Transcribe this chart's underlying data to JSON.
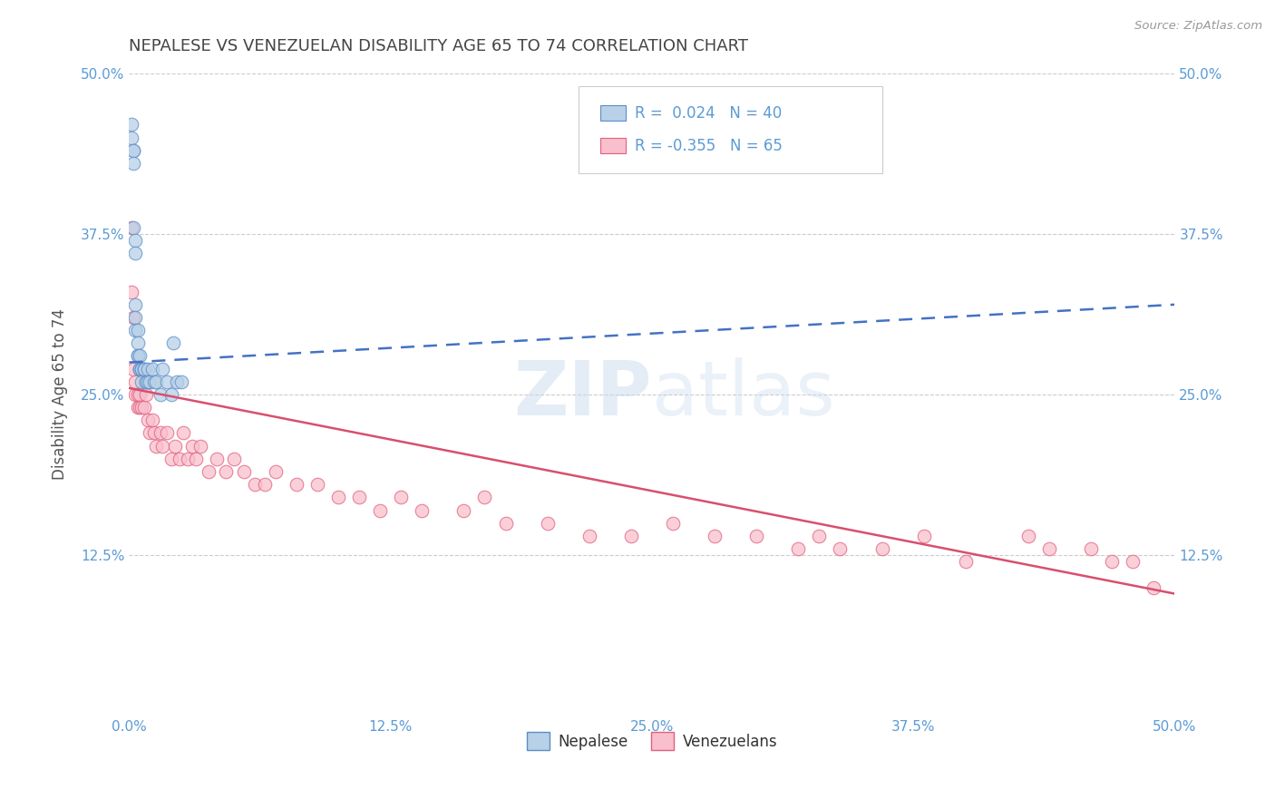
{
  "title": "NEPALESE VS VENEZUELAN DISABILITY AGE 65 TO 74 CORRELATION CHART",
  "source": "Source: ZipAtlas.com",
  "ylabel": "Disability Age 65 to 74",
  "xlim": [
    0.0,
    0.5
  ],
  "ylim": [
    0.0,
    0.5
  ],
  "xtick_labels": [
    "0.0%",
    "12.5%",
    "25.0%",
    "37.5%",
    "50.0%"
  ],
  "xtick_vals": [
    0.0,
    0.125,
    0.25,
    0.375,
    0.5
  ],
  "ytick_labels": [
    "12.5%",
    "25.0%",
    "37.5%",
    "50.0%"
  ],
  "ytick_vals": [
    0.125,
    0.25,
    0.375,
    0.5
  ],
  "nepalese_R": 0.024,
  "nepalese_N": 40,
  "venezuelan_R": -0.355,
  "venezuelan_N": 65,
  "nepalese_color": "#b8d0e8",
  "venezuelan_color": "#f9bfcc",
  "nepalese_edge_color": "#5b8ec4",
  "venezuelan_edge_color": "#e06080",
  "nepalese_line_color": "#4472c4",
  "venezuelan_line_color": "#d94f6e",
  "nepalese_x": [
    0.001,
    0.001,
    0.002,
    0.002,
    0.002,
    0.002,
    0.003,
    0.003,
    0.003,
    0.003,
    0.003,
    0.004,
    0.004,
    0.004,
    0.004,
    0.005,
    0.005,
    0.005,
    0.005,
    0.006,
    0.006,
    0.006,
    0.007,
    0.007,
    0.007,
    0.008,
    0.008,
    0.009,
    0.009,
    0.01,
    0.011,
    0.012,
    0.013,
    0.015,
    0.016,
    0.018,
    0.02,
    0.021,
    0.023,
    0.025
  ],
  "nepalese_y": [
    0.46,
    0.45,
    0.44,
    0.44,
    0.43,
    0.38,
    0.37,
    0.36,
    0.32,
    0.31,
    0.3,
    0.3,
    0.29,
    0.28,
    0.28,
    0.28,
    0.27,
    0.27,
    0.27,
    0.27,
    0.27,
    0.26,
    0.27,
    0.27,
    0.27,
    0.26,
    0.26,
    0.27,
    0.26,
    0.26,
    0.27,
    0.26,
    0.26,
    0.25,
    0.27,
    0.26,
    0.25,
    0.29,
    0.26,
    0.26
  ],
  "venezuelan_x": [
    0.001,
    0.001,
    0.002,
    0.002,
    0.003,
    0.003,
    0.004,
    0.004,
    0.005,
    0.005,
    0.006,
    0.007,
    0.008,
    0.009,
    0.01,
    0.011,
    0.012,
    0.013,
    0.015,
    0.016,
    0.018,
    0.02,
    0.022,
    0.024,
    0.026,
    0.028,
    0.03,
    0.032,
    0.034,
    0.038,
    0.042,
    0.046,
    0.05,
    0.055,
    0.06,
    0.065,
    0.07,
    0.08,
    0.09,
    0.1,
    0.11,
    0.12,
    0.13,
    0.14,
    0.16,
    0.17,
    0.18,
    0.2,
    0.22,
    0.24,
    0.26,
    0.28,
    0.3,
    0.32,
    0.33,
    0.34,
    0.36,
    0.38,
    0.4,
    0.43,
    0.44,
    0.46,
    0.47,
    0.48,
    0.49
  ],
  "venezuelan_y": [
    0.38,
    0.33,
    0.31,
    0.27,
    0.26,
    0.25,
    0.25,
    0.24,
    0.25,
    0.24,
    0.24,
    0.24,
    0.25,
    0.23,
    0.22,
    0.23,
    0.22,
    0.21,
    0.22,
    0.21,
    0.22,
    0.2,
    0.21,
    0.2,
    0.22,
    0.2,
    0.21,
    0.2,
    0.21,
    0.19,
    0.2,
    0.19,
    0.2,
    0.19,
    0.18,
    0.18,
    0.19,
    0.18,
    0.18,
    0.17,
    0.17,
    0.16,
    0.17,
    0.16,
    0.16,
    0.17,
    0.15,
    0.15,
    0.14,
    0.14,
    0.15,
    0.14,
    0.14,
    0.13,
    0.14,
    0.13,
    0.13,
    0.14,
    0.12,
    0.14,
    0.13,
    0.13,
    0.12,
    0.12,
    0.1
  ],
  "nep_trend_x": [
    0.0,
    0.5
  ],
  "nep_trend_y": [
    0.275,
    0.32
  ],
  "ven_trend_x": [
    0.0,
    0.5
  ],
  "ven_trend_y": [
    0.255,
    0.095
  ]
}
